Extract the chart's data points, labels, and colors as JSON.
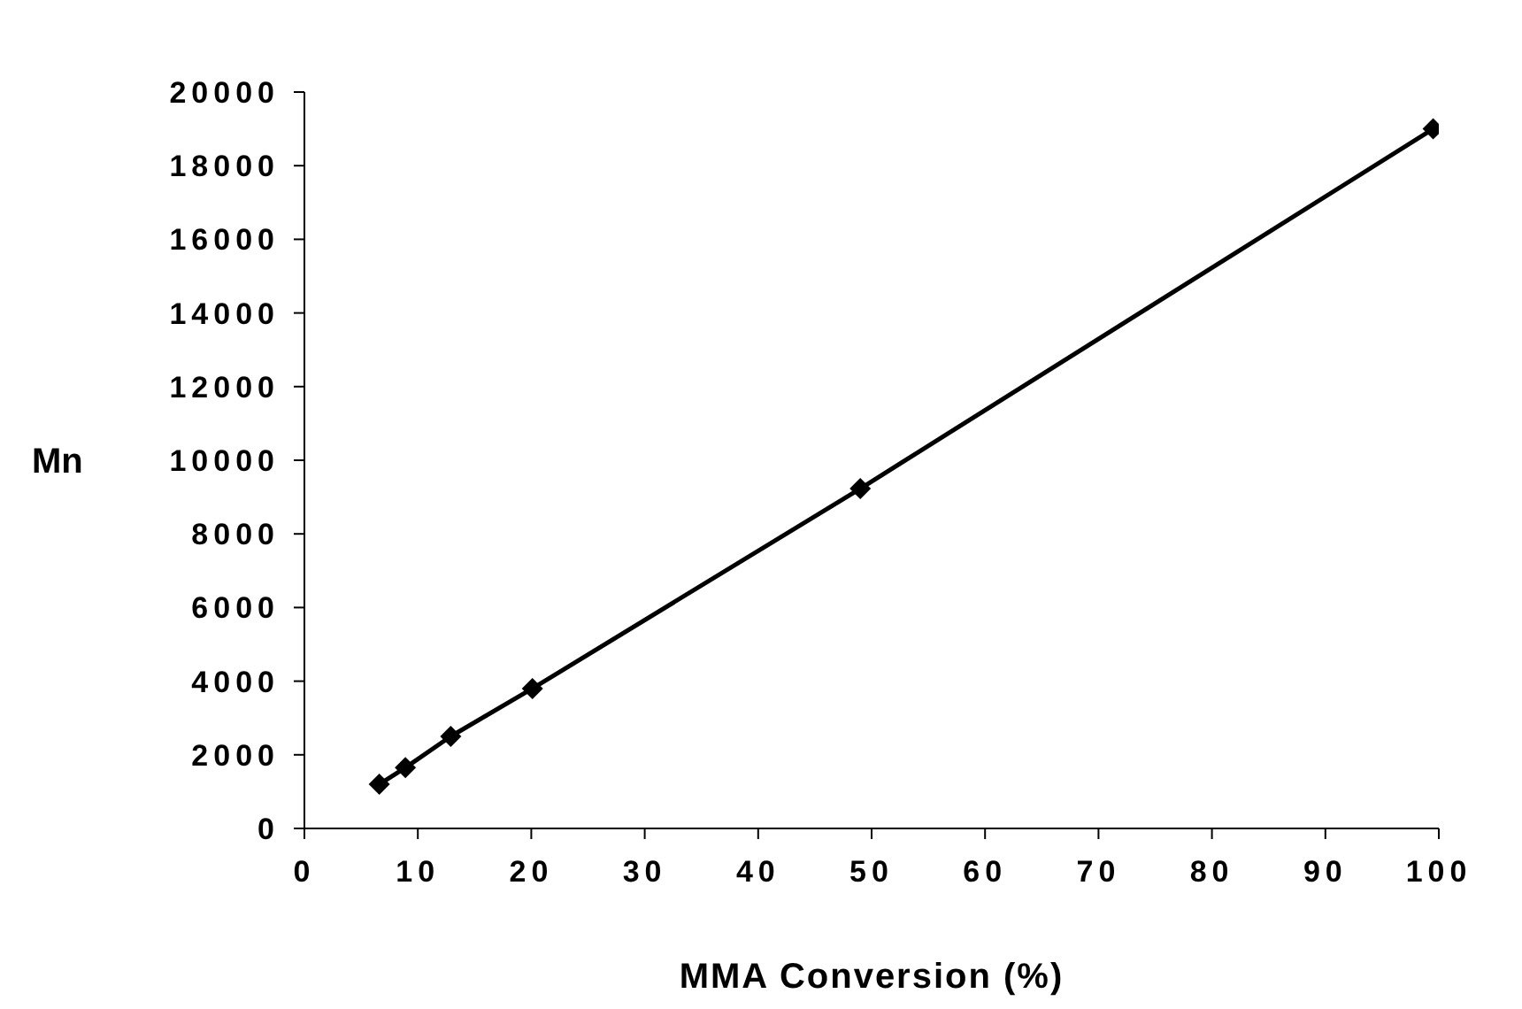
{
  "chart_data": {
    "type": "line",
    "xlabel": "MMA  Conversion  (%)",
    "ylabel": "Mn",
    "x": [
      6.6,
      8.9,
      12.9,
      20.1,
      49,
      99.5
    ],
    "series": [
      {
        "color": "#000000",
        "values": [
          1200,
          1650,
          2500,
          3800,
          9230,
          19000
        ]
      }
    ],
    "xlim": [
      0,
      100
    ],
    "xticks": [
      0,
      10,
      20,
      30,
      40,
      50,
      60,
      70,
      80,
      90,
      100
    ],
    "ylim": [
      0,
      20000
    ],
    "yticks": [
      0,
      2000,
      4000,
      6000,
      8000,
      10000,
      12000,
      14000,
      16000,
      18000,
      20000
    ],
    "grid": false,
    "legend": false,
    "marker": "diamond",
    "line_style": "solid"
  }
}
